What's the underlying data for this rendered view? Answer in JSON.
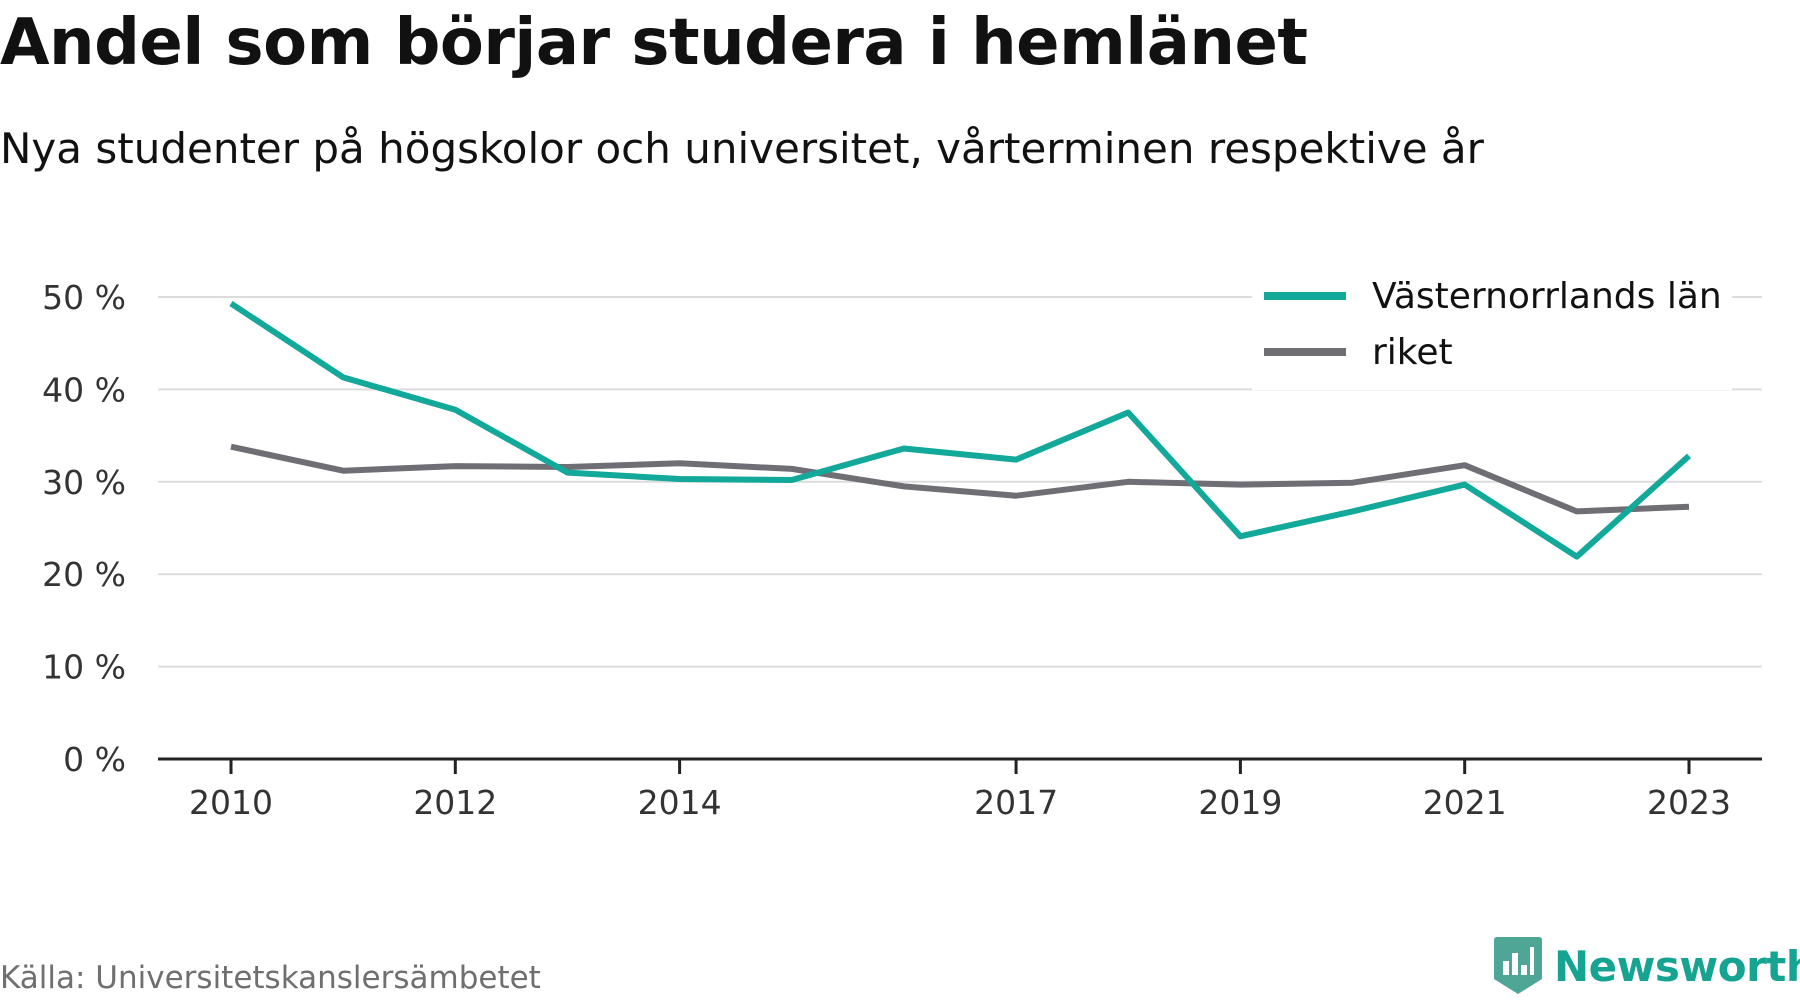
{
  "title": "Andel som börjar studera i hemlänet",
  "subtitle": "Nya studenter på högskolor och universitet, vårterminen respektive år",
  "source": "Källa: Universitetskanslersämbetet",
  "brand": "Newsworthy",
  "colors": {
    "series_primary": "#12a89a",
    "series_secondary": "#6f6e75",
    "grid": "#dcdcdc",
    "axis": "#222222",
    "brand": "#15a392"
  },
  "icons": [
    "newsworthy-logo-icon"
  ],
  "chart_data": {
    "type": "line",
    "x": [
      2010,
      2011,
      2012,
      2013,
      2014,
      2015,
      2016,
      2017,
      2018,
      2019,
      2020,
      2021,
      2022,
      2023
    ],
    "series": [
      {
        "name": "Västernorrlands län",
        "color": "#12a89a",
        "values": [
          49.3,
          41.3,
          37.8,
          31.0,
          30.3,
          30.2,
          33.6,
          32.4,
          37.5,
          24.1,
          26.8,
          29.7,
          21.9,
          32.8
        ]
      },
      {
        "name": "riket",
        "color": "#6f6e75",
        "values": [
          33.8,
          31.2,
          31.7,
          31.6,
          32.0,
          31.4,
          29.5,
          28.5,
          30.0,
          29.7,
          29.9,
          31.8,
          26.8,
          27.3
        ]
      }
    ],
    "ylim": [
      0,
      50
    ],
    "yticks": [
      0,
      10,
      20,
      30,
      40,
      50
    ],
    "ytick_labels": [
      "0 %",
      "10 %",
      "20 %",
      "30 %",
      "40 %",
      "50 %"
    ],
    "xticks": [
      2010,
      2012,
      2014,
      2017,
      2019,
      2021,
      2023
    ],
    "xtick_labels": [
      "2010",
      "2012",
      "2014",
      "2017",
      "2019",
      "2021",
      "2023"
    ],
    "xlabel": "",
    "ylabel": "",
    "grid": true,
    "legend_position": "top-right"
  }
}
